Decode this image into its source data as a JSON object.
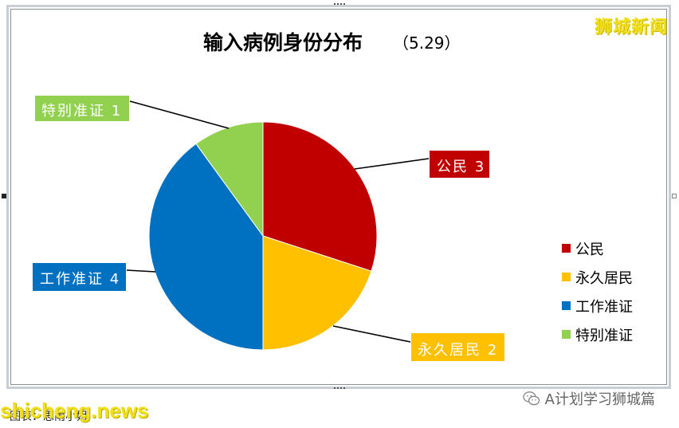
{
  "chart_data": {
    "type": "pie",
    "title": "输入病例身份分布",
    "subtitle": "（5.29）",
    "slices": [
      {
        "label": "公民",
        "value": 3,
        "color": "#c00000",
        "data_label": "公民 3"
      },
      {
        "label": "永久居民",
        "value": 2,
        "color": "#ffc000",
        "data_label": "永久居民 2"
      },
      {
        "label": "工作准证",
        "value": 4,
        "color": "#0070c0",
        "data_label": "工作准证 4"
      },
      {
        "label": "特别准证",
        "value": 1,
        "color": "#92d050",
        "data_label": "特别准证 1"
      }
    ],
    "legend_position": "right"
  },
  "watermarks": {
    "top_right": "狮城新闻",
    "bottom_left": "shicheng.news"
  },
  "caption": "图表：思雨小姐",
  "wechat": {
    "account": "A计划学习狮城篇",
    "icon": "wechat-icon"
  }
}
